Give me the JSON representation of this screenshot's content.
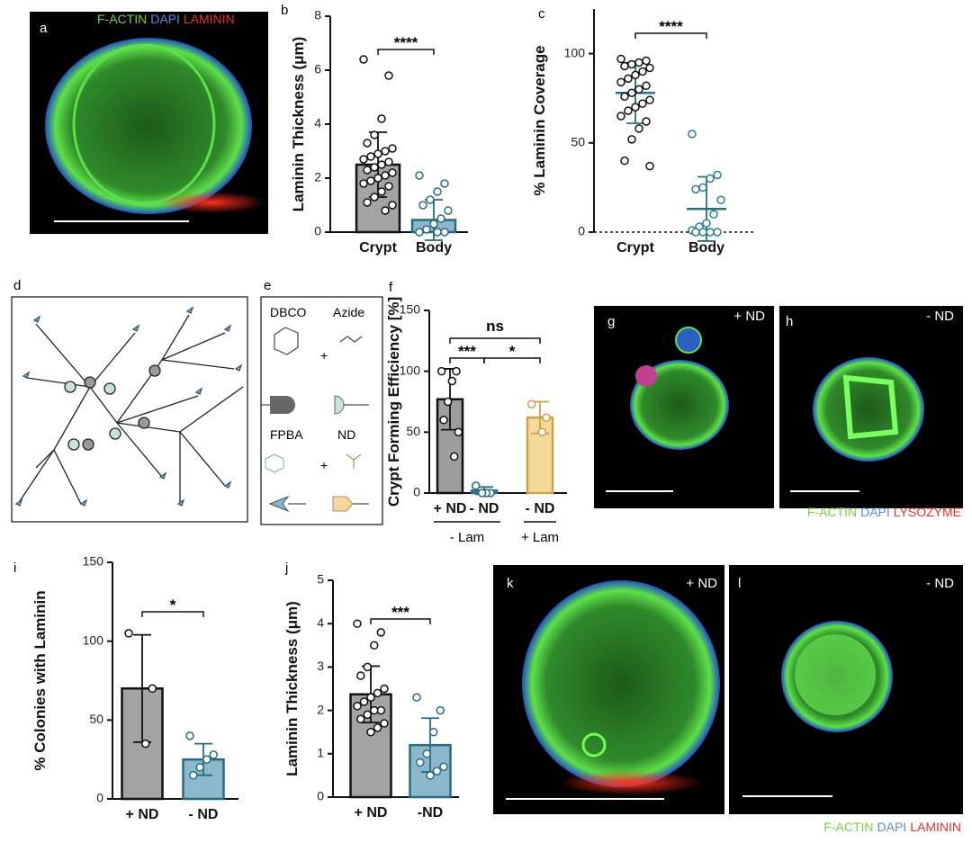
{
  "images": [
    {
      "label": "a",
      "legend": [
        {
          "text": "F-ACTIN",
          "color": "#7ccf4a"
        },
        {
          "text": "DAPI",
          "color": "#5b8bd8"
        },
        {
          "text": "LAMININ",
          "color": "#e33030"
        }
      ]
    },
    {
      "label": "g",
      "tag": "+ ND"
    },
    {
      "label": "h",
      "tag": "- ND",
      "legend": [
        {
          "text": "F-ACTIN",
          "color": "#7ccf4a"
        },
        {
          "text": "DAPI",
          "color": "#5b8bd8"
        },
        {
          "text": "LYSOZYME",
          "color": "#e33030"
        }
      ]
    },
    {
      "label": "k",
      "tag": "+ ND"
    },
    {
      "label": "l",
      "tag": "- ND",
      "legend": [
        {
          "text": "F-ACTIN",
          "color": "#7ccf4a"
        },
        {
          "text": "DAPI",
          "color": "#5b8bd8"
        },
        {
          "text": "LAMININ",
          "color": "#e33030"
        }
      ]
    }
  ],
  "diagram": {
    "label": "d"
  },
  "chemistry": {
    "label": "e",
    "items": [
      "DBCO",
      "Azide",
      "FPBA",
      "ND"
    ],
    "plus": "+"
  },
  "chart_data": [
    {
      "type": "bar",
      "label": "b",
      "ylabel": "Laminin Thickness (μm)",
      "categories": [
        "Crypt",
        "Body"
      ],
      "values": [
        2.5,
        0.45
      ],
      "errors": [
        1.2,
        0.75
      ],
      "points": [
        [
          6.4,
          5.8,
          4.2,
          3.6,
          3.3,
          3.1,
          3.0,
          2.9,
          2.8,
          2.7,
          2.6,
          2.5,
          2.4,
          2.3,
          2.2,
          2.1,
          2.0,
          1.9,
          1.8,
          1.7,
          1.5,
          1.3,
          1.1,
          1.0,
          0.8
        ],
        [
          2.1,
          1.8,
          1.5,
          1.2,
          1.0,
          0.8,
          0.5,
          0.3,
          0.1,
          0,
          0,
          0
        ]
      ],
      "colors": [
        "#a3a3a3",
        "#8db7cb"
      ],
      "edge_colors": [
        "#111111",
        "#2a6a80"
      ],
      "ylim": [
        0,
        8
      ],
      "yticks": [
        0,
        2,
        4,
        6,
        8
      ],
      "comparisons": [
        {
          "between": [
            0,
            1
          ],
          "label": "****"
        }
      ]
    },
    {
      "type": "dot",
      "label": "c",
      "ylabel": "% Laminin Coverage",
      "categories": [
        "Crypt",
        "Body"
      ],
      "values": [
        78,
        13
      ],
      "errors": [
        17,
        18
      ],
      "points": [
        [
          97,
          96,
          95,
          94,
          93,
          92,
          90,
          88,
          86,
          84,
          82,
          80,
          78,
          76,
          74,
          72,
          70,
          68,
          65,
          62,
          58,
          52,
          40,
          37
        ],
        [
          55,
          32,
          30,
          25,
          24,
          18,
          10,
          5,
          3,
          1,
          0,
          0,
          0,
          0
        ]
      ],
      "colors": [
        "#111111",
        "#2e7d90"
      ],
      "line_color": "#2a6f85",
      "ylim": [
        0,
        125
      ],
      "yticks": [
        0,
        50,
        100
      ],
      "comparisons": [
        {
          "between": [
            0,
            1
          ],
          "label": "****"
        }
      ]
    },
    {
      "type": "bar",
      "label": "f",
      "ylabel": "Crypt Forming Efficiency [%]",
      "categories": [
        "+ ND",
        "- ND",
        "- ND"
      ],
      "values": [
        77,
        2,
        62
      ],
      "errors": [
        25,
        3,
        13
      ],
      "points": [
        [
          100,
          100,
          92,
          75,
          60,
          50,
          30
        ],
        [
          6,
          0,
          0,
          0
        ],
        [
          73,
          62,
          50
        ]
      ],
      "colors": [
        "#9e9e9e",
        "#8db7cb",
        "#f5d99a"
      ],
      "edge_colors": [
        "#111111",
        "#2a6a80",
        "#c9a24a"
      ],
      "ylim": [
        0,
        150
      ],
      "yticks": [
        0,
        50,
        100,
        150
      ],
      "groups": [
        {
          "name": "- Lam",
          "size": 2
        },
        {
          "name": "+ Lam",
          "size": 1
        }
      ],
      "comparisons": [
        {
          "between": [
            0,
            1
          ],
          "label": "***"
        },
        {
          "between": [
            1,
            2
          ],
          "label": "*"
        },
        {
          "between": [
            0,
            2
          ],
          "label": "ns"
        }
      ]
    },
    {
      "type": "bar",
      "label": "i",
      "ylabel": "% Colonies with Laminin",
      "categories": [
        "+ ND",
        "- ND"
      ],
      "values": [
        70,
        25
      ],
      "errors": [
        34,
        10
      ],
      "points": [
        [
          105,
          70,
          35
        ],
        [
          40,
          28,
          25,
          20,
          15
        ]
      ],
      "colors": [
        "#a3a3a3",
        "#8db7cb"
      ],
      "edge_colors": [
        "#111111",
        "#2a6a80"
      ],
      "ylim": [
        0,
        150
      ],
      "yticks": [
        0,
        50,
        100,
        150
      ],
      "comparisons": [
        {
          "between": [
            0,
            1
          ],
          "label": "*"
        }
      ]
    },
    {
      "type": "bar",
      "label": "j",
      "ylabel": "Laminin Thickness (μm)",
      "categories": [
        "+ ND",
        "-ND"
      ],
      "values": [
        2.37,
        1.2
      ],
      "errors": [
        0.65,
        0.62
      ],
      "points": [
        [
          4.0,
          3.8,
          3.5,
          3.0,
          2.8,
          2.5,
          2.4,
          2.3,
          2.2,
          2.1,
          2.0,
          2.0,
          1.9,
          1.8,
          1.7,
          1.6,
          1.5
        ],
        [
          2.3,
          2.0,
          1.5,
          1.0,
          0.8,
          0.7,
          0.6,
          0.5
        ]
      ],
      "colors": [
        "#a3a3a3",
        "#8db7cb"
      ],
      "edge_colors": [
        "#111111",
        "#2a6a80"
      ],
      "ylim": [
        0,
        5
      ],
      "yticks": [
        0,
        1,
        2,
        3,
        4,
        5
      ],
      "comparisons": [
        {
          "between": [
            0,
            1
          ],
          "label": "***"
        }
      ]
    }
  ]
}
